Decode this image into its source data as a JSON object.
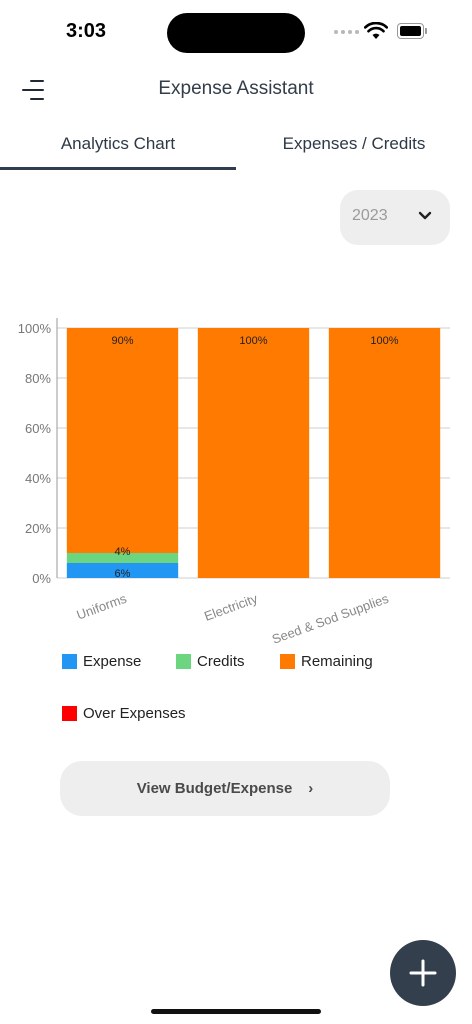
{
  "status_bar": {
    "time": "3:03"
  },
  "header": {
    "title": "Expense Assistant"
  },
  "tabs": [
    {
      "label": "Analytics Chart",
      "active": true
    },
    {
      "label": "Expenses / Credits",
      "active": false
    }
  ],
  "year_select": {
    "value": "2023"
  },
  "chart_data": {
    "type": "bar",
    "stacked": true,
    "categories": [
      "Uniforms",
      "Electricity",
      "Seed & Sod Supplies"
    ],
    "series": [
      {
        "name": "Expense",
        "color": "#2196f3",
        "values": [
          6,
          0,
          0
        ],
        "labels": [
          "6%",
          "",
          ""
        ]
      },
      {
        "name": "Credits",
        "color": "#6cd57f",
        "values": [
          4,
          0,
          0
        ],
        "labels": [
          "4%",
          "",
          ""
        ]
      },
      {
        "name": "Remaining",
        "color": "#ff7a00",
        "values": [
          90,
          100,
          100
        ],
        "labels": [
          "90%",
          "100%",
          "100%"
        ]
      },
      {
        "name": "Over Expenses",
        "color": "#ff0000",
        "values": [
          0,
          0,
          0
        ],
        "labels": [
          "",
          "",
          ""
        ]
      }
    ],
    "y_ticks": [
      "0%",
      "20%",
      "40%",
      "60%",
      "80%",
      "100%"
    ],
    "ylim": [
      0,
      100
    ],
    "grid": true,
    "legend_position": "bottom"
  },
  "legend": [
    {
      "label": "Expense",
      "color": "#2196f3"
    },
    {
      "label": "Credits",
      "color": "#6cd57f"
    },
    {
      "label": "Remaining",
      "color": "#ff7a00"
    },
    {
      "label": "Over Expenses",
      "color": "#ff0000"
    }
  ],
  "actions": {
    "view_button_label": "View Budget/Expense"
  },
  "icons": {
    "menu": "menu-icon",
    "chevron": "chevron-down-icon",
    "fab": "plus-icon"
  }
}
